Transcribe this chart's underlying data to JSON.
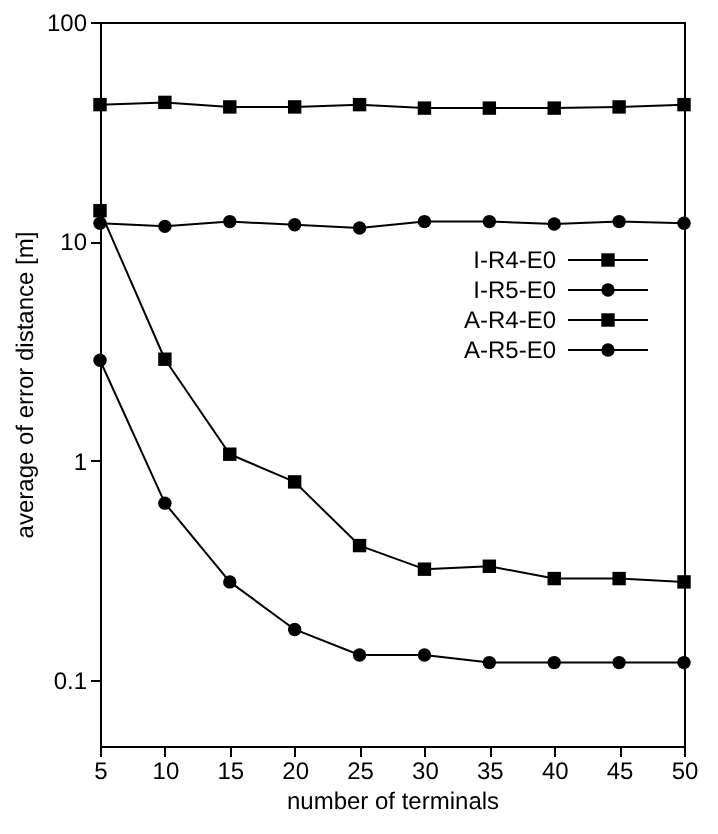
{
  "chart_data": {
    "type": "line",
    "xlabel": "number of terminals",
    "ylabel": "average of error distance [m]",
    "x": [
      5,
      10,
      15,
      20,
      25,
      30,
      35,
      40,
      45,
      50
    ],
    "series": [
      {
        "name": "I-R4-E0",
        "color": "#000000",
        "marker": "square",
        "values": [
          42,
          43,
          41,
          41,
          42,
          40.5,
          40.5,
          40.5,
          41,
          42
        ]
      },
      {
        "name": "I-R5-E0",
        "color": "#000000",
        "marker": "circle",
        "values": [
          12.1,
          11.7,
          12.3,
          11.9,
          11.5,
          12.3,
          12.3,
          12.0,
          12.3,
          12.1
        ]
      },
      {
        "name": "A-R4-E0",
        "color": "#000000",
        "marker": "square",
        "values": [
          13.8,
          2.9,
          1.07,
          0.8,
          0.41,
          0.32,
          0.33,
          0.29,
          0.29,
          0.28
        ]
      },
      {
        "name": "A-R5-E0",
        "color": "#000000",
        "marker": "circle",
        "values": [
          2.87,
          0.64,
          0.28,
          0.17,
          0.13,
          0.13,
          0.12,
          0.12,
          0.12,
          0.12
        ]
      }
    ],
    "xlim": [
      5,
      50
    ],
    "xticks": [
      5,
      10,
      15,
      20,
      25,
      30,
      35,
      40,
      45,
      50
    ],
    "ylim": [
      0.05,
      100
    ],
    "yticks": [
      0.1,
      1,
      10,
      100
    ],
    "log": "y",
    "grid": false,
    "legend": "top right",
    "line_style": "solid"
  }
}
